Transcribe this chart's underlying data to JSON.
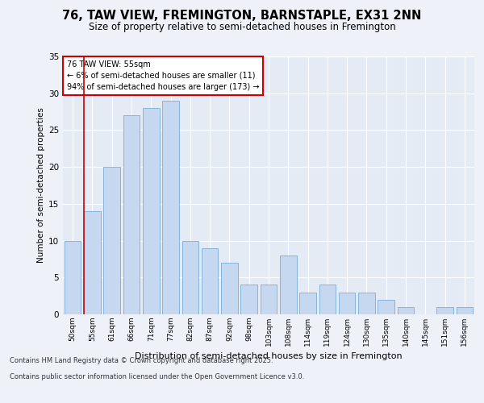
{
  "title1": "76, TAW VIEW, FREMINGTON, BARNSTAPLE, EX31 2NN",
  "title2": "Size of property relative to semi-detached houses in Fremington",
  "xlabel": "Distribution of semi-detached houses by size in Fremington",
  "ylabel": "Number of semi-detached properties",
  "categories": [
    "50sqm",
    "55sqm",
    "61sqm",
    "66sqm",
    "71sqm",
    "77sqm",
    "82sqm",
    "87sqm",
    "92sqm",
    "98sqm",
    "103sqm",
    "108sqm",
    "114sqm",
    "119sqm",
    "124sqm",
    "130sqm",
    "135sqm",
    "140sqm",
    "145sqm",
    "151sqm",
    "156sqm"
  ],
  "values": [
    10,
    14,
    20,
    27,
    28,
    29,
    10,
    9,
    7,
    4,
    4,
    8,
    3,
    4,
    3,
    3,
    2,
    1,
    0,
    1,
    1
  ],
  "bar_color": "#c5d8f0",
  "bar_edge_color": "#7aaed6",
  "highlight_bar_index": 1,
  "highlight_line_color": "#cc0000",
  "annotation_text": "76 TAW VIEW: 55sqm\n← 6% of semi-detached houses are smaller (11)\n94% of semi-detached houses are larger (173) →",
  "annotation_box_color": "#ffffff",
  "annotation_box_edge_color": "#cc0000",
  "ylim": [
    0,
    35
  ],
  "yticks": [
    0,
    5,
    10,
    15,
    20,
    25,
    30,
    35
  ],
  "footer_line1": "Contains HM Land Registry data © Crown copyright and database right 2025.",
  "footer_line2": "Contains public sector information licensed under the Open Government Licence v3.0.",
  "bg_color": "#eef2f8",
  "plot_bg_color": "#e4ebf5"
}
